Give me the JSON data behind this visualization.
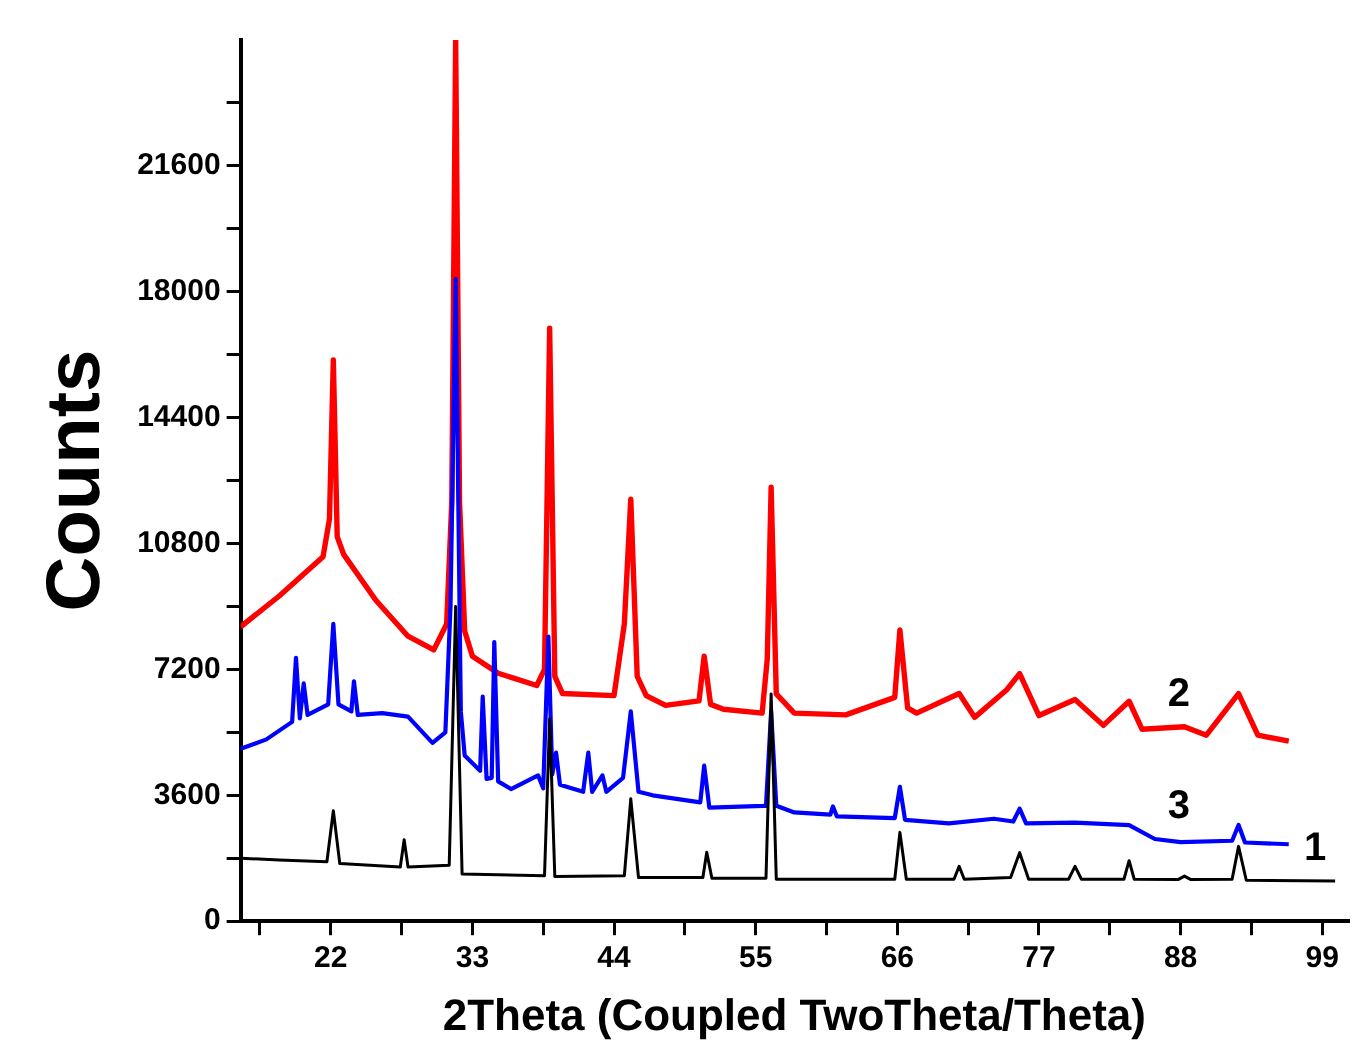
{
  "chart_data": {
    "type": "line",
    "xlabel": "2Theta (Coupled TwoTheta/Theta)",
    "ylabel": "Counts",
    "xlim": [
      15,
      101
    ],
    "ylim": [
      0,
      25200
    ],
    "xticks": [
      {
        "value": 16.5,
        "label": null
      },
      22,
      {
        "value": 27.5,
        "label": null
      },
      33,
      {
        "value": 38.5,
        "label": null
      },
      44,
      {
        "value": 49.5,
        "label": null
      },
      55,
      {
        "value": 60.5,
        "label": null
      },
      66,
      {
        "value": 71.5,
        "label": null
      },
      77,
      {
        "value": 82.5,
        "label": null
      },
      88,
      {
        "value": 93.5,
        "label": null
      },
      99
    ],
    "yticks": [
      0,
      {
        "value": 1800,
        "label": null
      },
      3600,
      {
        "value": 5400,
        "label": null
      },
      7200,
      {
        "value": 9000,
        "label": null
      },
      10800,
      {
        "value": 12600,
        "label": null
      },
      14400,
      {
        "value": 16200,
        "label": null
      },
      18000,
      {
        "value": 19800,
        "label": null
      },
      21600,
      {
        "value": 23400,
        "label": null
      }
    ],
    "series": [
      {
        "name": "1",
        "color": "#000000",
        "x": [
          15,
          18,
          21.7,
          22.2,
          22.7,
          27.4,
          27.7,
          28,
          31.2,
          31.7,
          32.2,
          38.6,
          39.0,
          39.4,
          44.8,
          45.3,
          45.9,
          50.9,
          51.2,
          51.6,
          55.8,
          56.2,
          56.6,
          65.8,
          66.2,
          66.7,
          70.4,
          70.8,
          71.2,
          74.8,
          75.5,
          76.2,
          79.3,
          79.8,
          80.3,
          83.6,
          84.0,
          84.4,
          87.8,
          88.3,
          88.8,
          92.0,
          92.5,
          93.1,
          100
        ],
        "values": [
          1800,
          1750,
          1700,
          3160,
          1650,
          1550,
          2330,
          1550,
          1600,
          9000,
          1350,
          1300,
          5780,
          1280,
          1300,
          3500,
          1250,
          1250,
          1970,
          1230,
          1230,
          6500,
          1200,
          1200,
          2540,
          1200,
          1200,
          1570,
          1200,
          1250,
          1960,
          1200,
          1200,
          1570,
          1200,
          1200,
          1730,
          1200,
          1190,
          1290,
          1190,
          1200,
          2140,
          1170,
          1150
        ]
      },
      {
        "name": "3",
        "color": "#0000ff",
        "x": [
          15,
          17,
          19,
          19.3,
          19.6,
          19.9,
          20.2,
          21.8,
          22.2,
          22.6,
          23.6,
          23.8,
          24.1,
          26,
          28,
          29.9,
          30.9,
          31.3,
          31.7,
          32.1,
          32.4,
          33.6,
          33.8,
          34.1,
          34.5,
          34.7,
          35.0,
          36,
          38.1,
          38.5,
          38.9,
          39.2,
          39.5,
          39.8,
          41.6,
          42.0,
          42.3,
          43.1,
          43.4,
          44.7,
          45.3,
          45.9,
          47,
          50.7,
          51.0,
          51.4,
          55.8,
          56.2,
          56.6,
          58,
          60.8,
          61.0,
          61.3,
          65.8,
          66.2,
          66.6,
          70,
          73.5,
          75,
          75.5,
          76,
          79.8,
          84,
          86,
          88,
          92,
          92.5,
          93,
          96.4
        ],
        "values": [
          4930,
          5200,
          5700,
          7530,
          5800,
          6800,
          5900,
          6200,
          8500,
          6200,
          6000,
          6860,
          5900,
          5950,
          5850,
          5100,
          5400,
          9000,
          18370,
          6000,
          4740,
          4300,
          6420,
          4070,
          4100,
          7980,
          4000,
          3780,
          4170,
          3800,
          8140,
          4200,
          4820,
          3900,
          3700,
          4820,
          3700,
          4170,
          3700,
          4100,
          6000,
          3700,
          3600,
          3400,
          4450,
          3250,
          3300,
          6000,
          3300,
          3110,
          3050,
          3280,
          3000,
          2950,
          3840,
          2900,
          2800,
          2930,
          2850,
          3220,
          2800,
          2820,
          2750,
          2350,
          2260,
          2300,
          2750,
          2250,
          2200
        ]
      },
      {
        "name": "2",
        "color": "#ff0000",
        "x": [
          15,
          18,
          21.4,
          21.9,
          22.2,
          22.5,
          23,
          25.5,
          28,
          30,
          31,
          31.4,
          31.7,
          32.0,
          32.4,
          33,
          35,
          38,
          38.6,
          39.0,
          39.4,
          40,
          44,
          44.8,
          45.3,
          45.8,
          46.5,
          48,
          50.6,
          51.0,
          51.5,
          52.5,
          55.5,
          55.9,
          56.2,
          56.6,
          58,
          62,
          65.8,
          66.2,
          66.8,
          67.5,
          70.8,
          72,
          74.5,
          75.5,
          77,
          79.8,
          82,
          84,
          85,
          88.3,
          90,
          92.5,
          94,
          96.4
        ],
        "values": [
          8420,
          9300,
          10420,
          11500,
          16050,
          11000,
          10490,
          9180,
          8150,
          7760,
          8500,
          12000,
          25200,
          12000,
          8300,
          7580,
          7090,
          6740,
          7200,
          16960,
          7000,
          6510,
          6450,
          8500,
          12070,
          7000,
          6450,
          6170,
          6300,
          7580,
          6200,
          6060,
          5950,
          7500,
          12410,
          6500,
          5950,
          5900,
          6400,
          8330,
          6100,
          5950,
          6510,
          5830,
          6620,
          7080,
          5880,
          6340,
          5600,
          6290,
          5490,
          5560,
          5320,
          6510,
          5320,
          5150
        ]
      }
    ]
  }
}
